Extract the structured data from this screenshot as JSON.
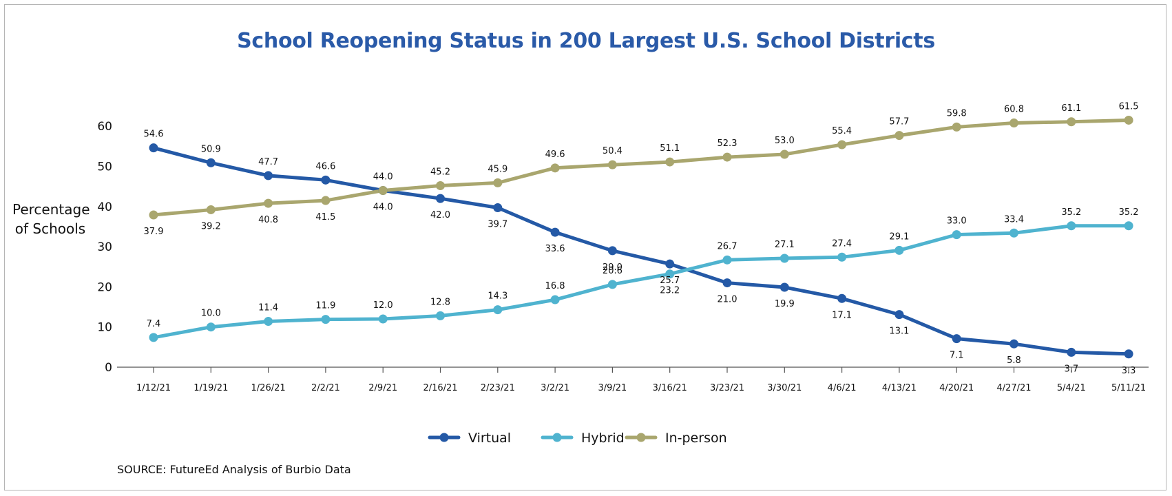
{
  "chart_data": {
    "type": "line",
    "title": "School Reopening Status in 200 Largest U.S. School Districts",
    "ylabel": "Percentage of Schools",
    "ylabel_lines": [
      "Percentage",
      "of Schools"
    ],
    "xlabel": "",
    "categories": [
      "1/12/21",
      "1/19/21",
      "1/26/21",
      "2/2/21",
      "2/9/21",
      "2/16/21",
      "2/23/21",
      "3/2/21",
      "3/9/21",
      "3/16/21",
      "3/23/21",
      "3/30/21",
      "4/6/21",
      "4/13/21",
      "4/20/21",
      "4/27/21",
      "5/4/21",
      "5/11/21"
    ],
    "ylim": [
      0,
      60
    ],
    "yticks": [
      0,
      10,
      20,
      30,
      40,
      50,
      60
    ],
    "grid": false,
    "legend_position": "bottom",
    "series": [
      {
        "name": "Virtual",
        "color": "#2459a6",
        "values": [
          54.6,
          50.9,
          47.7,
          46.6,
          44.0,
          42.0,
          39.7,
          33.6,
          29.0,
          25.7,
          21.0,
          19.9,
          17.1,
          13.1,
          7.1,
          5.8,
          3.7,
          3.3
        ]
      },
      {
        "name": "Hybrid",
        "color": "#4fb3cf",
        "values": [
          7.4,
          10.0,
          11.4,
          11.9,
          12.0,
          12.8,
          14.3,
          16.8,
          20.6,
          23.2,
          26.7,
          27.1,
          27.4,
          29.1,
          33.0,
          33.4,
          35.2,
          35.2
        ]
      },
      {
        "name": "In-person",
        "color": "#a9a66e",
        "values": [
          37.9,
          39.2,
          40.8,
          41.5,
          44.0,
          45.2,
          45.9,
          49.6,
          50.4,
          51.1,
          52.3,
          53.0,
          55.4,
          57.7,
          59.8,
          60.8,
          61.1,
          61.5
        ]
      }
    ],
    "source": "SOURCE: FutureEd Analysis of Burbio Data"
  }
}
